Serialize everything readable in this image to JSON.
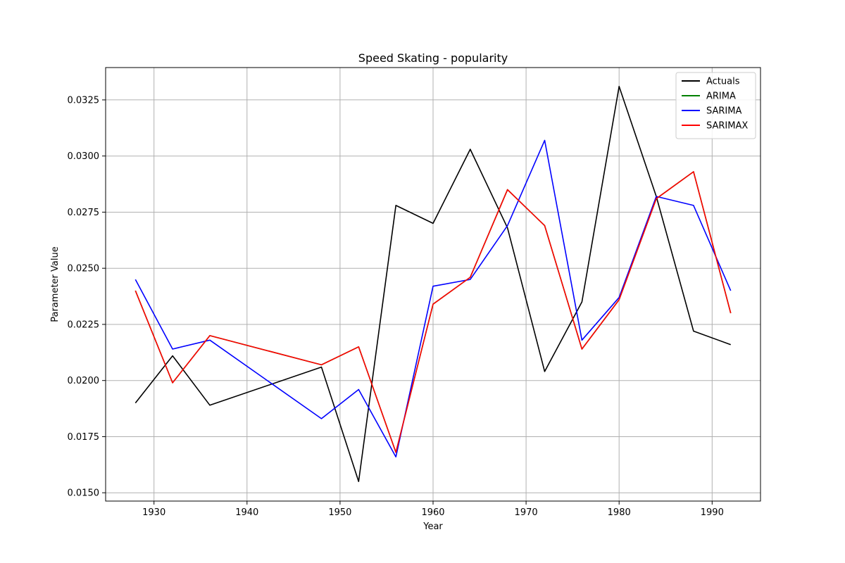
{
  "chart_data": {
    "type": "line",
    "title": "Speed Skating - popularity",
    "xlabel": "Year",
    "ylabel": "Parameter Value",
    "xlim": [
      1924.8,
      1995.2
    ],
    "ylim": [
      0.01463,
      0.03394
    ],
    "xticks": [
      1930,
      1940,
      1950,
      1960,
      1970,
      1980,
      1990
    ],
    "yticks": [
      0.015,
      0.0175,
      0.02,
      0.0225,
      0.025,
      0.0275,
      0.03,
      0.0325
    ],
    "ytick_labels": [
      "0.0150",
      "0.0175",
      "0.0200",
      "0.0225",
      "0.0250",
      "0.0275",
      "0.0300",
      "0.0325"
    ],
    "grid": true,
    "legend_position": "top-right",
    "x": [
      1928,
      1932,
      1936,
      1948,
      1952,
      1956,
      1960,
      1964,
      1968,
      1972,
      1976,
      1980,
      1984,
      1988,
      1992
    ],
    "series": [
      {
        "name": "Actuals",
        "color": "#000000",
        "values": [
          0.019,
          0.0211,
          0.0189,
          0.0206,
          0.0155,
          0.0278,
          0.027,
          0.0303,
          0.0268,
          0.0204,
          0.0235,
          0.0331,
          0.0282,
          0.0222,
          0.0216
        ]
      },
      {
        "name": "ARIMA",
        "color": "#008000",
        "values": [
          0.024,
          0.0199,
          0.022,
          0.0207,
          0.0215,
          0.0168,
          0.0234,
          0.0246,
          0.0285,
          0.0269,
          0.0214,
          0.0236,
          0.0281,
          0.0293,
          0.023
        ]
      },
      {
        "name": "SARIMA",
        "color": "#0000ff",
        "values": [
          0.0245,
          0.0214,
          0.0218,
          0.0183,
          0.0196,
          0.0166,
          0.0242,
          0.0245,
          0.0269,
          0.0307,
          0.0218,
          0.0237,
          0.0282,
          0.0278,
          0.024
        ]
      },
      {
        "name": "SARIMAX",
        "color": "#ff0000",
        "values": [
          0.024,
          0.0199,
          0.022,
          0.0207,
          0.0215,
          0.0168,
          0.0234,
          0.0246,
          0.0285,
          0.0269,
          0.0214,
          0.0236,
          0.0281,
          0.0293,
          0.023
        ]
      }
    ]
  }
}
